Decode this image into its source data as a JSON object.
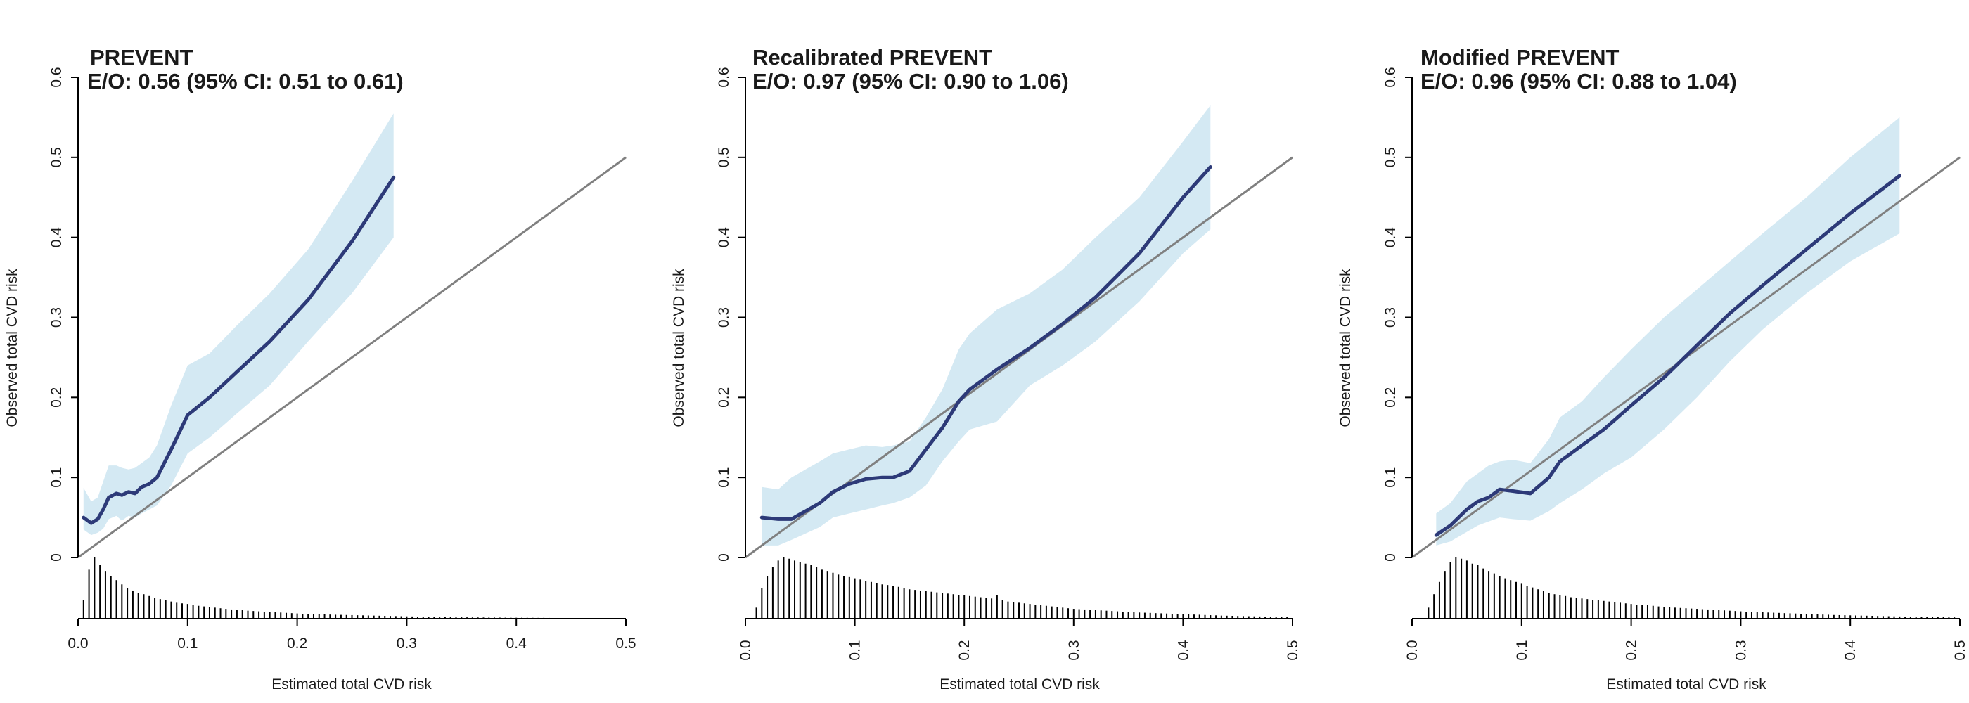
{
  "colors": {
    "ci_band": "#d4e9f3",
    "curve": "#2d3a78",
    "reference_line": "#808080",
    "axis": "#000000",
    "histogram": "#000000"
  },
  "chart_data": [
    {
      "type": "line",
      "title": "PREVENT",
      "subtitle": "E/O: 0.56 (95% CI: 0.51 to 0.61)",
      "xlabel": "Estimated total CVD risk",
      "ylabel": "Observed total CVD risk",
      "xlim": [
        0,
        0.5
      ],
      "ylim": [
        0,
        0.6
      ],
      "x_ticks": [
        "0.0",
        "0.1",
        "0.2",
        "0.3",
        "0.4",
        "0.5"
      ],
      "y_ticks": [
        "0",
        "0.1",
        "0.2",
        "0.3",
        "0.4",
        "0.5",
        "0.6"
      ],
      "x_tick_orientation": "horizontal",
      "reference_line": [
        [
          0,
          0
        ],
        [
          0.5,
          0.5
        ]
      ],
      "series": [
        {
          "name": "",
          "x": [
            0.005,
            0.012,
            0.018,
            0.023,
            0.028,
            0.035,
            0.04,
            0.046,
            0.052,
            0.058,
            0.065,
            0.072,
            0.085,
            0.1,
            0.12,
            0.145,
            0.175,
            0.21,
            0.25,
            0.288
          ],
          "y": [
            0.05,
            0.043,
            0.048,
            0.06,
            0.075,
            0.08,
            0.078,
            0.082,
            0.08,
            0.088,
            0.092,
            0.1,
            0.135,
            0.178,
            0.2,
            0.232,
            0.27,
            0.322,
            0.395,
            0.475
          ],
          "lower": [
            0.035,
            0.028,
            0.031,
            0.036,
            0.048,
            0.052,
            0.046,
            0.052,
            0.05,
            0.055,
            0.06,
            0.065,
            0.09,
            0.13,
            0.15,
            0.18,
            0.215,
            0.27,
            0.33,
            0.4
          ],
          "upper": [
            0.087,
            0.07,
            0.075,
            0.095,
            0.115,
            0.115,
            0.112,
            0.11,
            0.112,
            0.118,
            0.125,
            0.14,
            0.19,
            0.24,
            0.255,
            0.29,
            0.33,
            0.385,
            0.47,
            0.555
          ]
        }
      ],
      "histogram": {
        "x": [
          0.005,
          0.01,
          0.015,
          0.02,
          0.025,
          0.03,
          0.035,
          0.04,
          0.045,
          0.05,
          0.055,
          0.06,
          0.065,
          0.07,
          0.075,
          0.08,
          0.085,
          0.09,
          0.095,
          0.1,
          0.105,
          0.11,
          0.115,
          0.12,
          0.125,
          0.13,
          0.135,
          0.14,
          0.145,
          0.15,
          0.155,
          0.16,
          0.165,
          0.17,
          0.175,
          0.18,
          0.185,
          0.19,
          0.195,
          0.2,
          0.205,
          0.21,
          0.215,
          0.22,
          0.225,
          0.23,
          0.235,
          0.24,
          0.245,
          0.25,
          0.255,
          0.26,
          0.265,
          0.27,
          0.275,
          0.28,
          0.285,
          0.29,
          0.295,
          0.3,
          0.305,
          0.31,
          0.315,
          0.32,
          0.325,
          0.33,
          0.335,
          0.34,
          0.345,
          0.35,
          0.355,
          0.36,
          0.365,
          0.37,
          0.375,
          0.38,
          0.385,
          0.39,
          0.395,
          0.4,
          0.405,
          0.41,
          0.415,
          0.42,
          0.425,
          0.43
        ],
        "counts": [
          0.3,
          0.8,
          1.0,
          0.88,
          0.78,
          0.7,
          0.63,
          0.56,
          0.5,
          0.46,
          0.42,
          0.4,
          0.37,
          0.34,
          0.32,
          0.3,
          0.28,
          0.26,
          0.25,
          0.24,
          0.22,
          0.21,
          0.2,
          0.19,
          0.18,
          0.17,
          0.16,
          0.15,
          0.145,
          0.14,
          0.13,
          0.125,
          0.12,
          0.115,
          0.11,
          0.105,
          0.1,
          0.095,
          0.09,
          0.085,
          0.08,
          0.078,
          0.075,
          0.072,
          0.07,
          0.067,
          0.064,
          0.062,
          0.06,
          0.058,
          0.056,
          0.054,
          0.052,
          0.05,
          0.048,
          0.046,
          0.044,
          0.042,
          0.04,
          0.038,
          0.036,
          0.034,
          0.032,
          0.03,
          0.028,
          0.026,
          0.025,
          0.024,
          0.023,
          0.022,
          0.021,
          0.02,
          0.02,
          0.019,
          0.018,
          0.018,
          0.017,
          0.016,
          0.016,
          0.015,
          0.015,
          0.014,
          0.014,
          0.013,
          0.013,
          0.012
        ]
      }
    },
    {
      "type": "line",
      "title": "Recalibrated PREVENT",
      "subtitle": "E/O: 0.97 (95% CI: 0.90 to 1.06)",
      "xlabel": "Estimated total CVD risk",
      "ylabel": "Observed total CVD risk",
      "xlim": [
        0,
        0.5
      ],
      "ylim": [
        0,
        0.6
      ],
      "x_ticks": [
        "0.0",
        "0.1",
        "0.2",
        "0.3",
        "0.4",
        "0.5"
      ],
      "y_ticks": [
        "0",
        "0.1",
        "0.2",
        "0.3",
        "0.4",
        "0.5",
        "0.6"
      ],
      "x_tick_orientation": "vertical",
      "reference_line": [
        [
          0,
          0
        ],
        [
          0.5,
          0.5
        ]
      ],
      "series": [
        {
          "name": "",
          "x": [
            0.015,
            0.03,
            0.042,
            0.055,
            0.068,
            0.08,
            0.095,
            0.11,
            0.125,
            0.135,
            0.15,
            0.165,
            0.18,
            0.195,
            0.205,
            0.23,
            0.26,
            0.29,
            0.32,
            0.36,
            0.4,
            0.425
          ],
          "y": [
            0.05,
            0.048,
            0.048,
            0.058,
            0.068,
            0.082,
            0.092,
            0.098,
            0.1,
            0.1,
            0.108,
            0.135,
            0.162,
            0.195,
            0.21,
            0.235,
            0.262,
            0.292,
            0.325,
            0.38,
            0.45,
            0.488
          ],
          "lower": [
            0.015,
            0.015,
            0.022,
            0.03,
            0.038,
            0.05,
            0.055,
            0.06,
            0.065,
            0.068,
            0.075,
            0.09,
            0.12,
            0.145,
            0.16,
            0.17,
            0.215,
            0.24,
            0.27,
            0.32,
            0.38,
            0.41
          ],
          "upper": [
            0.088,
            0.085,
            0.1,
            0.11,
            0.12,
            0.13,
            0.135,
            0.14,
            0.138,
            0.14,
            0.145,
            0.175,
            0.21,
            0.26,
            0.28,
            0.31,
            0.33,
            0.36,
            0.4,
            0.45,
            0.52,
            0.565
          ]
        }
      ],
      "histogram": {
        "x": [
          0.01,
          0.015,
          0.02,
          0.025,
          0.03,
          0.035,
          0.04,
          0.045,
          0.05,
          0.055,
          0.06,
          0.065,
          0.07,
          0.075,
          0.08,
          0.085,
          0.09,
          0.095,
          0.1,
          0.105,
          0.11,
          0.115,
          0.12,
          0.125,
          0.13,
          0.135,
          0.14,
          0.145,
          0.15,
          0.155,
          0.16,
          0.165,
          0.17,
          0.175,
          0.18,
          0.185,
          0.19,
          0.195,
          0.2,
          0.205,
          0.21,
          0.215,
          0.22,
          0.225,
          0.23,
          0.235,
          0.24,
          0.245,
          0.25,
          0.255,
          0.26,
          0.265,
          0.27,
          0.275,
          0.28,
          0.285,
          0.29,
          0.295,
          0.3,
          0.305,
          0.31,
          0.315,
          0.32,
          0.325,
          0.33,
          0.335,
          0.34,
          0.345,
          0.35,
          0.355,
          0.36,
          0.365,
          0.37,
          0.375,
          0.38,
          0.385,
          0.39,
          0.395,
          0.4,
          0.405,
          0.41,
          0.415,
          0.42,
          0.425,
          0.43,
          0.435,
          0.44,
          0.445,
          0.45,
          0.455,
          0.46,
          0.465,
          0.47,
          0.475,
          0.48,
          0.485,
          0.49,
          0.495
        ],
        "counts": [
          0.18,
          0.5,
          0.7,
          0.85,
          0.95,
          1.0,
          0.98,
          0.95,
          0.92,
          0.9,
          0.88,
          0.84,
          0.8,
          0.78,
          0.75,
          0.72,
          0.7,
          0.68,
          0.66,
          0.64,
          0.62,
          0.6,
          0.58,
          0.56,
          0.55,
          0.54,
          0.52,
          0.5,
          0.48,
          0.47,
          0.46,
          0.45,
          0.44,
          0.43,
          0.42,
          0.41,
          0.4,
          0.39,
          0.38,
          0.37,
          0.36,
          0.35,
          0.34,
          0.33,
          0.38,
          0.3,
          0.28,
          0.27,
          0.26,
          0.25,
          0.24,
          0.23,
          0.22,
          0.21,
          0.2,
          0.19,
          0.18,
          0.17,
          0.16,
          0.155,
          0.15,
          0.145,
          0.14,
          0.135,
          0.13,
          0.125,
          0.12,
          0.115,
          0.11,
          0.105,
          0.1,
          0.097,
          0.094,
          0.09,
          0.087,
          0.084,
          0.08,
          0.077,
          0.074,
          0.07,
          0.067,
          0.064,
          0.06,
          0.057,
          0.054,
          0.05,
          0.048,
          0.046,
          0.044,
          0.042,
          0.04,
          0.038,
          0.036,
          0.034,
          0.032,
          0.03,
          0.028,
          0.026
        ]
      }
    },
    {
      "type": "line",
      "title": "Modified PREVENT",
      "subtitle": "E/O: 0.96 (95% CI: 0.88 to 1.04)",
      "xlabel": "Estimated total CVD risk",
      "ylabel": "Observed total CVD risk",
      "xlim": [
        0,
        0.5
      ],
      "ylim": [
        0,
        0.6
      ],
      "x_ticks": [
        "0.0",
        "0.1",
        "0.2",
        "0.3",
        "0.4",
        "0.5"
      ],
      "y_ticks": [
        "0",
        "0.1",
        "0.2",
        "0.3",
        "0.4",
        "0.5",
        "0.6"
      ],
      "x_tick_orientation": "vertical",
      "reference_line": [
        [
          0,
          0
        ],
        [
          0.5,
          0.5
        ]
      ],
      "series": [
        {
          "name": "",
          "x": [
            0.022,
            0.035,
            0.05,
            0.06,
            0.07,
            0.08,
            0.092,
            0.108,
            0.125,
            0.135,
            0.155,
            0.175,
            0.2,
            0.23,
            0.26,
            0.29,
            0.32,
            0.36,
            0.4,
            0.445
          ],
          "y": [
            0.028,
            0.04,
            0.06,
            0.07,
            0.075,
            0.085,
            0.083,
            0.08,
            0.1,
            0.12,
            0.14,
            0.16,
            0.19,
            0.225,
            0.265,
            0.305,
            0.34,
            0.385,
            0.43,
            0.477
          ],
          "lower": [
            0.015,
            0.02,
            0.032,
            0.04,
            0.045,
            0.05,
            0.048,
            0.046,
            0.058,
            0.068,
            0.085,
            0.105,
            0.125,
            0.16,
            0.2,
            0.245,
            0.285,
            0.33,
            0.37,
            0.405
          ],
          "upper": [
            0.055,
            0.068,
            0.095,
            0.105,
            0.115,
            0.12,
            0.122,
            0.118,
            0.148,
            0.175,
            0.195,
            0.225,
            0.26,
            0.3,
            0.335,
            0.37,
            0.405,
            0.45,
            0.5,
            0.55
          ]
        }
      ],
      "histogram": {
        "x": [
          0.015,
          0.02,
          0.025,
          0.03,
          0.035,
          0.04,
          0.045,
          0.05,
          0.055,
          0.06,
          0.065,
          0.07,
          0.075,
          0.08,
          0.085,
          0.09,
          0.095,
          0.1,
          0.105,
          0.11,
          0.115,
          0.12,
          0.125,
          0.13,
          0.135,
          0.14,
          0.145,
          0.15,
          0.155,
          0.16,
          0.165,
          0.17,
          0.175,
          0.18,
          0.185,
          0.19,
          0.195,
          0.2,
          0.205,
          0.21,
          0.215,
          0.22,
          0.225,
          0.23,
          0.235,
          0.24,
          0.245,
          0.25,
          0.255,
          0.26,
          0.265,
          0.27,
          0.275,
          0.28,
          0.285,
          0.29,
          0.295,
          0.3,
          0.305,
          0.31,
          0.315,
          0.32,
          0.325,
          0.33,
          0.335,
          0.34,
          0.345,
          0.35,
          0.355,
          0.36,
          0.365,
          0.37,
          0.375,
          0.38,
          0.385,
          0.39,
          0.395,
          0.4,
          0.405,
          0.41,
          0.415,
          0.42,
          0.425,
          0.43,
          0.435,
          0.44,
          0.445,
          0.45,
          0.455,
          0.46,
          0.465,
          0.47,
          0.475,
          0.48,
          0.485,
          0.49,
          0.495
        ],
        "counts": [
          0.18,
          0.4,
          0.6,
          0.78,
          0.92,
          1.0,
          0.98,
          0.95,
          0.9,
          0.88,
          0.82,
          0.78,
          0.74,
          0.7,
          0.66,
          0.63,
          0.6,
          0.57,
          0.54,
          0.51,
          0.48,
          0.45,
          0.42,
          0.4,
          0.38,
          0.37,
          0.35,
          0.34,
          0.33,
          0.32,
          0.31,
          0.3,
          0.29,
          0.28,
          0.27,
          0.26,
          0.25,
          0.24,
          0.23,
          0.225,
          0.22,
          0.21,
          0.2,
          0.195,
          0.19,
          0.18,
          0.175,
          0.17,
          0.165,
          0.16,
          0.155,
          0.15,
          0.145,
          0.14,
          0.135,
          0.13,
          0.125,
          0.12,
          0.115,
          0.11,
          0.107,
          0.104,
          0.1,
          0.097,
          0.094,
          0.09,
          0.087,
          0.084,
          0.08,
          0.077,
          0.074,
          0.07,
          0.067,
          0.064,
          0.06,
          0.058,
          0.056,
          0.054,
          0.052,
          0.05,
          0.048,
          0.046,
          0.044,
          0.042,
          0.04,
          0.038,
          0.036,
          0.034,
          0.032,
          0.03,
          0.028,
          0.026,
          0.025,
          0.024,
          0.023,
          0.022,
          0.021
        ]
      }
    }
  ]
}
